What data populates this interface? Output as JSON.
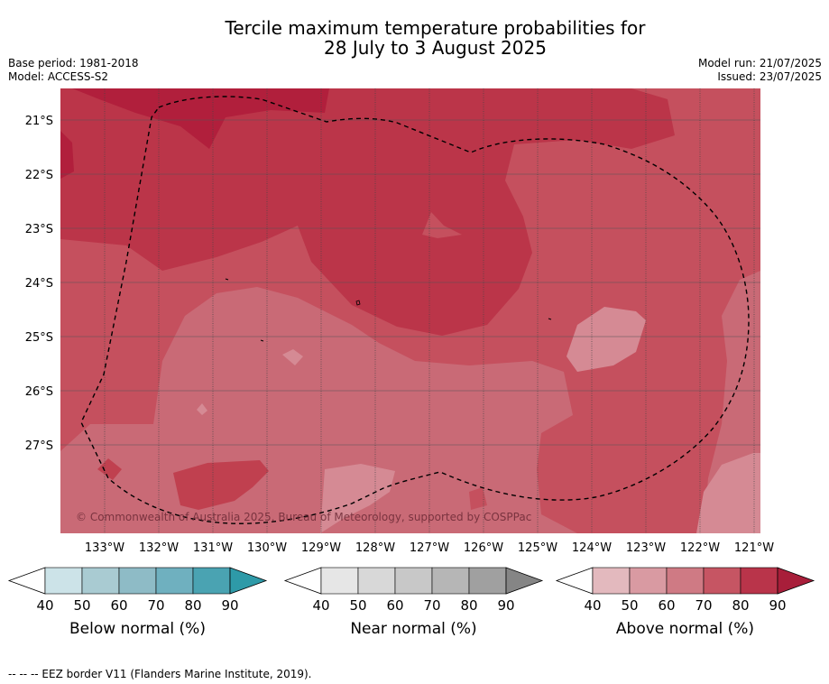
{
  "title": {
    "line1": "Tercile maximum temperature probabilities for",
    "line2": "28 July to 3 August 2025"
  },
  "meta": {
    "base_period": "Base period: 1981-2018",
    "model": "Model: ACCESS-S2",
    "model_run": "Model run: 21/07/2025",
    "issued": "Issued: 23/07/2025"
  },
  "map": {
    "lat_labels": [
      "21°S",
      "22°S",
      "23°S",
      "24°S",
      "25°S",
      "26°S",
      "27°S"
    ],
    "lon_labels": [
      "133°W",
      "132°W",
      "131°W",
      "130°W",
      "129°W",
      "128°W",
      "127°W",
      "126°W",
      "125°W",
      "124°W",
      "123°W",
      "122°W",
      "121°W"
    ],
    "copyright": "© Commonwealth of Australia 2025, Bureau of Meteorology, supported by COSPPac"
  },
  "legends": [
    {
      "name": "Below normal (%)",
      "ticks": [
        "40",
        "50",
        "60",
        "70",
        "80",
        "90"
      ],
      "colors": [
        "#cce3e8",
        "#a9cbd2",
        "#8ebbc6",
        "#6fb0bf",
        "#4aa3b2",
        "#2e9aa8"
      ]
    },
    {
      "name": "Near normal (%)",
      "ticks": [
        "40",
        "50",
        "60",
        "70",
        "80",
        "90"
      ],
      "colors": [
        "#e6e6e6",
        "#d8d8d8",
        "#c8c8c8",
        "#b6b6b6",
        "#a0a0a0",
        "#858585"
      ]
    },
    {
      "name": "Above normal (%)",
      "ticks": [
        "40",
        "50",
        "60",
        "70",
        "80",
        "90"
      ],
      "colors": [
        "#e3b9be",
        "#d99aa2",
        "#cf7a84",
        "#c65563",
        "#b9344a",
        "#a81e3a"
      ]
    }
  ],
  "footnote": "-- -- -- EEZ border V11 (Flanders Marine Institute, 2019)."
}
